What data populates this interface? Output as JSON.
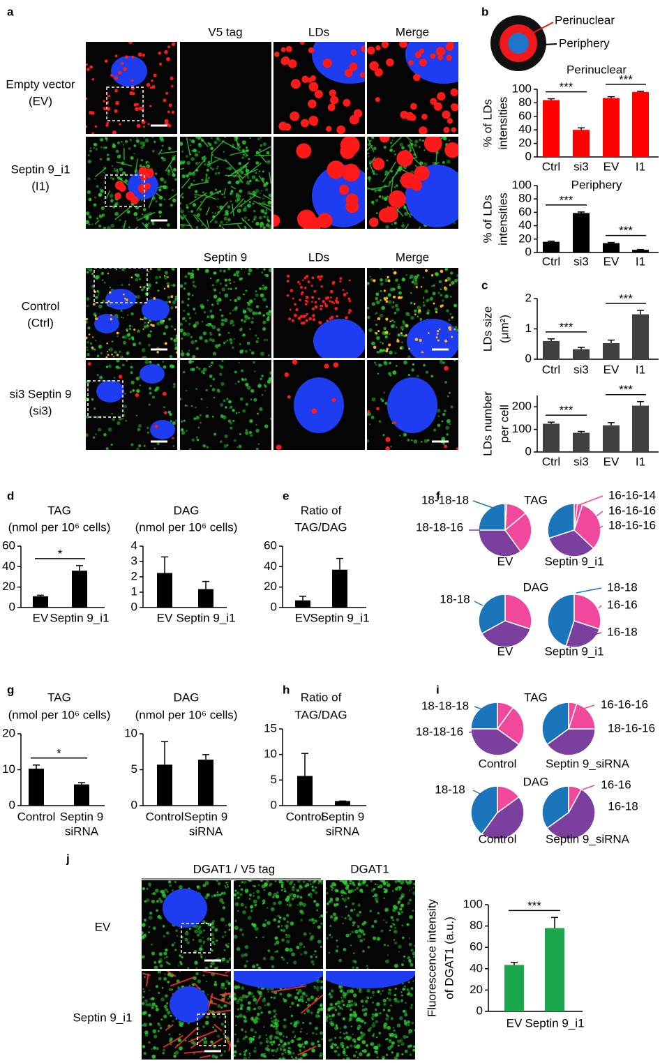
{
  "panel_letters": [
    "a",
    "b",
    "c",
    "d",
    "e",
    "f",
    "g",
    "h",
    "i",
    "j"
  ],
  "figure_a": {
    "top": {
      "headers": [
        "V5 tag",
        "LDs",
        "Merge"
      ],
      "rows": [
        [
          "Empty vector",
          "(EV)"
        ],
        [
          "Septin 9_i1",
          "(I1)"
        ]
      ]
    },
    "bottom": {
      "headers": [
        "Septin 9",
        "LDs",
        "Merge"
      ],
      "rows": [
        [
          "Control",
          "(Ctrl)"
        ],
        [
          "si3 Septin 9",
          "(si3)"
        ]
      ]
    }
  },
  "diagram_b": {
    "labels": [
      "Perinuclear",
      "Periphery"
    ]
  },
  "figure_j": {
    "headers": [
      "DGAT1",
      "/",
      "V5 tag",
      "DGAT1"
    ],
    "rows": [
      "EV",
      "Septin 9_i1"
    ]
  },
  "chart_data": [
    {
      "type": "bar",
      "title": "Perinuclear",
      "ylabel": [
        "% of LDs",
        "intensities"
      ],
      "categories": [
        "Ctrl",
        "si3",
        "EV",
        "I1"
      ],
      "values": [
        84,
        40,
        87,
        96
      ],
      "errors": [
        2,
        3,
        2,
        1
      ],
      "color": "#ff0000",
      "ylim": [
        0,
        100
      ],
      "yticks": [
        0,
        20,
        40,
        60,
        80,
        100
      ],
      "significance": [
        "***",
        "***"
      ]
    },
    {
      "type": "bar",
      "title": "Periphery",
      "ylabel": [
        "% of LDs",
        "intensities"
      ],
      "categories": [
        "Ctrl",
        "si3",
        "EV",
        "I1"
      ],
      "values": [
        16,
        59,
        14,
        4
      ],
      "errors": [
        1,
        1.5,
        1,
        0.5
      ],
      "color": "#000000",
      "ylim": [
        0,
        100
      ],
      "yticks": [
        0,
        20,
        40,
        60,
        80,
        100
      ],
      "significance": [
        "***",
        "***"
      ]
    },
    {
      "type": "bar",
      "ylabel": [
        "LDs size",
        "(μm²)"
      ],
      "categories": [
        "Ctrl",
        "si3",
        "EV",
        "I1"
      ],
      "values": [
        0.6,
        0.33,
        0.53,
        1.48
      ],
      "errors": [
        0.07,
        0.06,
        0.1,
        0.13
      ],
      "color": "#404040",
      "ylim": [
        0,
        2
      ],
      "yticks": [
        0,
        1,
        2
      ],
      "significance": [
        "***",
        "***"
      ]
    },
    {
      "type": "bar",
      "ylabel": [
        "LDs number",
        "per cell"
      ],
      "categories": [
        "Ctrl",
        "si3",
        "EV",
        "I1"
      ],
      "values": [
        125,
        85,
        118,
        205
      ],
      "errors": [
        7,
        6,
        12,
        18
      ],
      "color": "#404040",
      "ylim": [
        0,
        250
      ],
      "yticks": [
        0,
        100,
        200
      ],
      "significance": [
        "***",
        "***"
      ]
    },
    {
      "type": "bar",
      "title": [
        "TAG",
        "(nmol per 10⁶ cells)"
      ],
      "categories": [
        "EV",
        "Septin 9_i1"
      ],
      "values": [
        11,
        36
      ],
      "errors": [
        1,
        5
      ],
      "color": "#000000",
      "ylim": [
        0,
        60
      ],
      "yticks": [
        0,
        20,
        40,
        60
      ],
      "significance": [
        "*"
      ]
    },
    {
      "type": "bar",
      "title": [
        "DAG",
        "(nmol per 10⁶ cells)"
      ],
      "categories": [
        "EV",
        "Septin 9_i1"
      ],
      "values": [
        2.25,
        1.2
      ],
      "errors": [
        1.05,
        0.5
      ],
      "color": "#000000",
      "ylim": [
        0,
        4
      ],
      "yticks": [
        0,
        1,
        2,
        3,
        4
      ]
    },
    {
      "type": "bar",
      "title": [
        "Ratio of",
        "TAG/DAG"
      ],
      "categories": [
        "EV",
        "Septin 9_i1"
      ],
      "values": [
        7,
        37
      ],
      "errors": [
        4,
        11
      ],
      "color": "#000000",
      "ylim": [
        0,
        60
      ],
      "yticks": [
        0,
        20,
        40,
        60
      ]
    },
    {
      "type": "bar",
      "title": [
        "TAG",
        "(nmol per 10⁶ cells)"
      ],
      "categories": [
        "Control",
        [
          "Septin 9",
          "siRNA"
        ]
      ],
      "values": [
        10.3,
        5.9
      ],
      "errors": [
        1,
        0.5
      ],
      "color": "#000000",
      "ylim": [
        0,
        20
      ],
      "yticks": [
        0,
        10,
        20
      ],
      "significance": [
        "*"
      ]
    },
    {
      "type": "bar",
      "title": [
        "DAG",
        "(nmol per 10⁶ cells)"
      ],
      "categories": [
        "Control",
        [
          "Septin 9",
          "siRNA"
        ]
      ],
      "values": [
        5.7,
        6.4
      ],
      "errors": [
        3.2,
        0.7
      ],
      "color": "#000000",
      "ylim": [
        0,
        10
      ],
      "yticks": [
        0,
        5,
        10
      ]
    },
    {
      "type": "bar",
      "title": [
        "Ratio of",
        "TAG/DAG"
      ],
      "categories": [
        "Control",
        [
          "Septin 9",
          "siRNA"
        ]
      ],
      "values": [
        5.8,
        0.9
      ],
      "errors": [
        4.4,
        0
      ],
      "color": "#000000",
      "ylim": [
        0,
        15
      ],
      "yticks": [
        0,
        5,
        10,
        15
      ]
    },
    {
      "type": "bar",
      "ylabel": [
        "Fluorescence intensity",
        "of DGAT1 (a.u.)"
      ],
      "categories": [
        "EV",
        "Septin 9_i1"
      ],
      "values": [
        43.5,
        78
      ],
      "errors": [
        2.5,
        10
      ],
      "color": "#1aa64a",
      "ylim": [
        0,
        100
      ],
      "yticks": [
        0,
        20,
        40,
        60,
        80,
        100
      ],
      "significance": [
        "***"
      ]
    },
    {
      "type": "pie",
      "title": "TAG",
      "categories": [
        "18-18-18",
        "18-18-16",
        "18-16-16",
        "16-16-16",
        "16-16-14"
      ],
      "colors": [
        "#1b75bb",
        "#7b3f9e",
        "#f0489a",
        "#f0489a",
        "#f0489a"
      ],
      "series": [
        {
          "name": "EV",
          "values": [
            25,
            35,
            26,
            13,
            1
          ]
        },
        {
          "name": "Septin 9_i1",
          "values": [
            30,
            33,
            32,
            3,
            2
          ]
        }
      ]
    },
    {
      "type": "pie",
      "title": "DAG",
      "categories": [
        "18-18",
        "16-18",
        "16-16"
      ],
      "colors": [
        "#1b75bb",
        "#7b3f9e",
        "#f0489a"
      ],
      "series": [
        {
          "name": "EV",
          "values": [
            33,
            37,
            30
          ]
        },
        {
          "name": "Septin 9_i1",
          "values": [
            45,
            25,
            30
          ]
        }
      ]
    },
    {
      "type": "pie",
      "title": "TAG",
      "categories": [
        "18-18-18",
        "18-18-16",
        "18-16-16",
        "16-16-16"
      ],
      "colors": [
        "#1b75bb",
        "#7b3f9e",
        "#f0489a",
        "#f0489a"
      ],
      "series": [
        {
          "name": "Control",
          "values": [
            25,
            40,
            25,
            10
          ]
        },
        {
          "name": "Septin 9_siRNA",
          "values": [
            35,
            40,
            20,
            5
          ]
        }
      ]
    },
    {
      "type": "pie",
      "title": "DAG",
      "categories": [
        "18-18",
        "16-18",
        "16-16"
      ],
      "colors": [
        "#1b75bb",
        "#7b3f9e",
        "#f0489a"
      ],
      "series": [
        {
          "name": "Control",
          "values": [
            40,
            45,
            15
          ]
        },
        {
          "name": "Septin 9_siRNA",
          "values": [
            35,
            57,
            8
          ]
        }
      ]
    }
  ]
}
